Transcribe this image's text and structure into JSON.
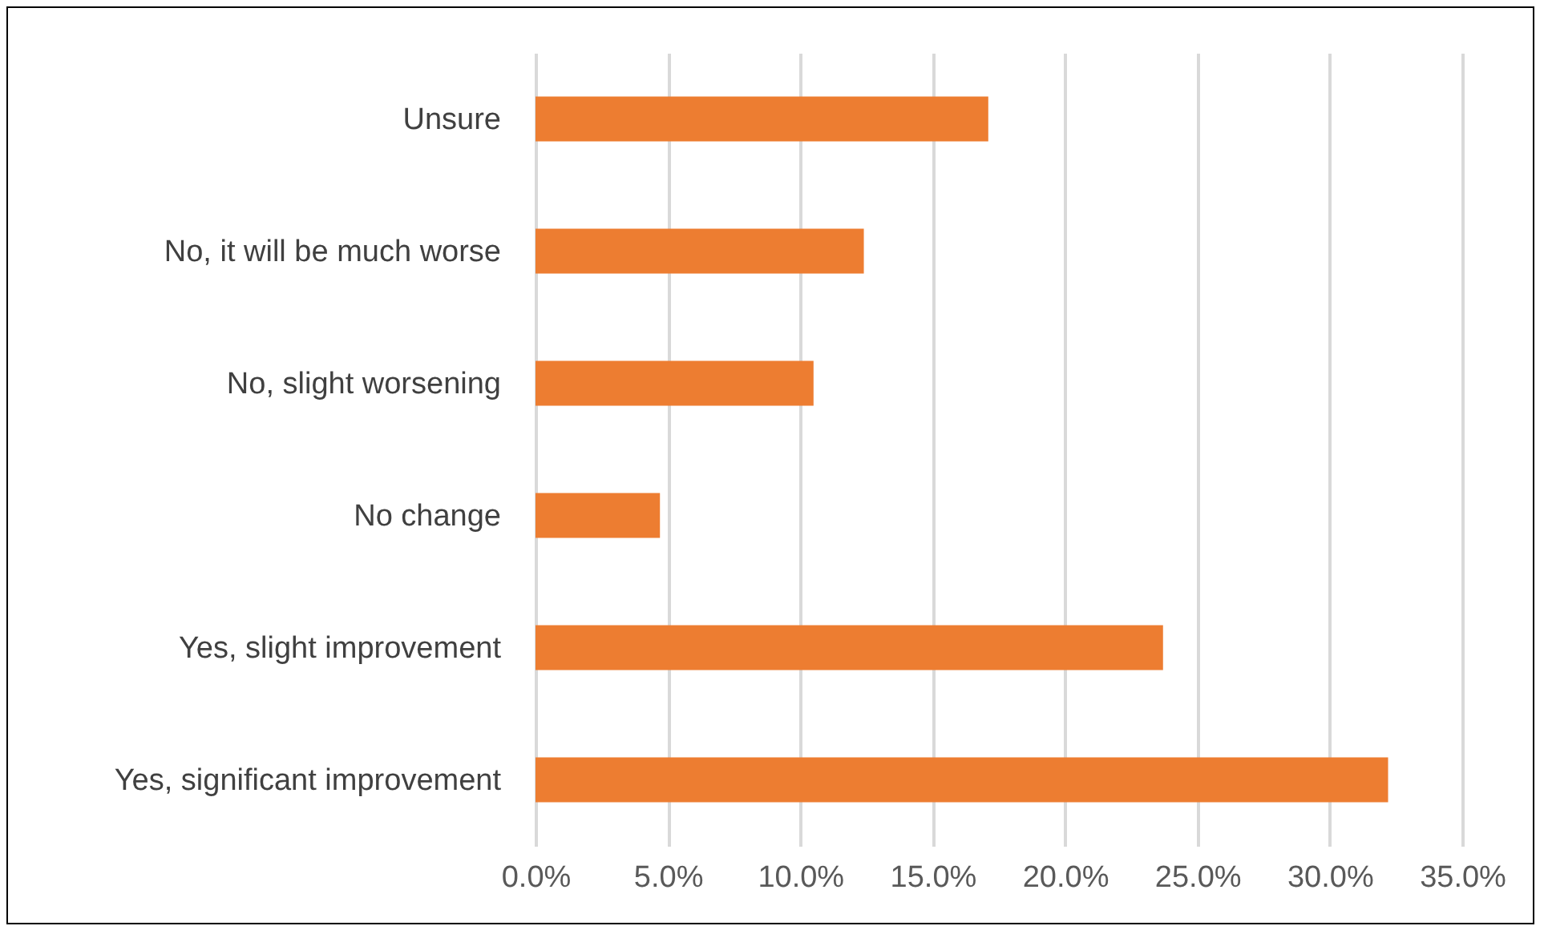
{
  "chart_data": {
    "type": "bar",
    "orientation": "horizontal",
    "categories": [
      "Unsure",
      "No, it will be much worse",
      "No, slight worsening",
      "No change",
      "Yes, slight improvement",
      "Yes, significant improvement"
    ],
    "series": [
      {
        "color": "#ed7d31",
        "values": [
          17.1,
          12.4,
          10.5,
          4.7,
          23.7,
          32.2
        ]
      }
    ],
    "xlim": [
      0,
      35
    ],
    "xticks": [
      {
        "value": 0,
        "label": "0.0%"
      },
      {
        "value": 5,
        "label": "5.0%"
      },
      {
        "value": 10,
        "label": "10.0%"
      },
      {
        "value": 15,
        "label": "15.0%"
      },
      {
        "value": 20,
        "label": "20.0%"
      },
      {
        "value": 25,
        "label": "25.0%"
      },
      {
        "value": 30,
        "label": "30.0%"
      },
      {
        "value": 35,
        "label": "35.0%"
      }
    ],
    "grid": "x"
  }
}
